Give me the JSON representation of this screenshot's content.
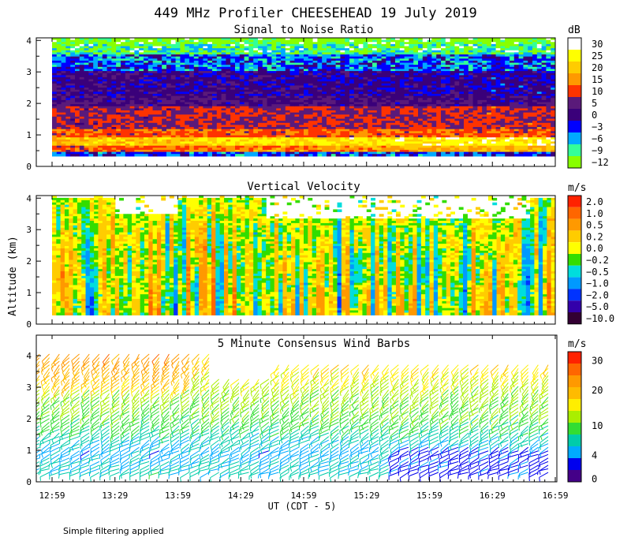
{
  "figure": {
    "title": "449 MHz Profiler CHEESEHEAD 19 July 2019",
    "ylabel": "Altitude (km)",
    "xlabel": "UT  (CDT - 5)",
    "xticks": [
      "12:59",
      "13:29",
      "13:59",
      "14:29",
      "14:59",
      "15:29",
      "15:59",
      "16:29",
      "16:59"
    ],
    "footnote": "Simple filtering applied"
  },
  "chart_data": [
    {
      "type": "heatmap",
      "title": "Signal to Noise Ratio",
      "ylim": [
        0,
        4
      ],
      "yticks": [
        "0",
        "1",
        "2",
        "3",
        "4"
      ],
      "colorbar": {
        "unit": "dB",
        "labels": [
          "30",
          "25",
          "20",
          "15",
          "10",
          "5",
          "0",
          "−3",
          "−6",
          "−9",
          "−12"
        ],
        "colors": [
          "#ffffff",
          "#ffff00",
          "#ffcc00",
          "#ff9900",
          "#ff3300",
          "#5a1a7a",
          "#3a007a",
          "#0000ff",
          "#00aaff",
          "#33ff99",
          "#88ff00"
        ]
      },
      "description_layers": [
        {
          "alt_min": 0.3,
          "alt_max": 0.5,
          "value_db": 0
        },
        {
          "alt_min": 0.5,
          "alt_max": 1.0,
          "value_db": 22
        },
        {
          "alt_min": 1.0,
          "alt_max": 1.8,
          "value_db": 10
        },
        {
          "alt_min": 1.8,
          "alt_max": 3.0,
          "value_db": 3
        },
        {
          "alt_min": 3.0,
          "alt_max": 3.6,
          "value_db": -3
        },
        {
          "alt_min": 3.6,
          "alt_max": 4.0,
          "value_db": -9
        }
      ]
    },
    {
      "type": "heatmap",
      "title": "Vertical Velocity",
      "ylim": [
        0,
        4
      ],
      "yticks": [
        "0",
        "1",
        "2",
        "3",
        "4"
      ],
      "colorbar": {
        "unit": "m/s",
        "labels": [
          "2.0",
          "1.0",
          "0.5",
          "0.2",
          "0.0",
          "−0.2",
          "−0.5",
          "−1.0",
          "−2.0",
          "−5.0",
          "−10.0"
        ],
        "colors": [
          "#ff2200",
          "#ff6600",
          "#ff9900",
          "#ffcc00",
          "#ffff00",
          "#33dd00",
          "#00dddd",
          "#0099ff",
          "#0033ff",
          "#3300aa",
          "#330033"
        ]
      },
      "description_layers": [
        {
          "alt_min": 0.3,
          "alt_max": 4.0,
          "value_ms": 0.0
        }
      ]
    },
    {
      "type": "scatter",
      "title": "5 Minute Consensus Wind Barbs",
      "ylim": [
        0,
        4
      ],
      "yticks": [
        "0",
        "1",
        "2",
        "3",
        "4"
      ],
      "colorbar": {
        "unit": "m/s",
        "labels": [
          "30",
          "20",
          "10",
          "4",
          "0"
        ],
        "colors": [
          "#ff2200",
          "#ff6600",
          "#ff9900",
          "#ffbb00",
          "#ffee00",
          "#aaee00",
          "#33dd33",
          "#00ccaa",
          "#00aaff",
          "#0000ee",
          "#440088"
        ]
      },
      "description_speed_profile": [
        {
          "alt_km": 0.5,
          "speed_ms": 8
        },
        {
          "alt_km": 1.0,
          "speed_ms": 6
        },
        {
          "alt_km": 2.0,
          "speed_ms": 12
        },
        {
          "alt_km": 3.0,
          "speed_ms": 15
        },
        {
          "alt_km": 4.0,
          "speed_ms": 20
        }
      ]
    }
  ]
}
